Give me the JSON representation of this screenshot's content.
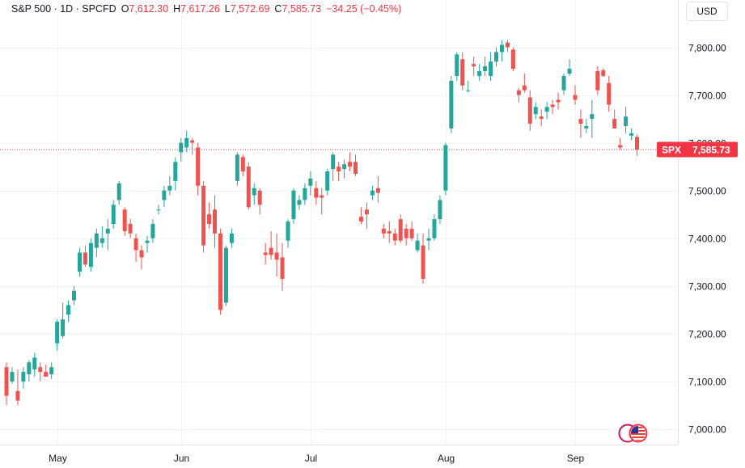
{
  "legend": {
    "symbol": "S&P 500 · 1D · SPCFD",
    "open_label": "O",
    "open": "7,612.30",
    "high_label": "H",
    "high": "7,617.26",
    "low_label": "L",
    "low": "7,572.69",
    "close_label": "C",
    "close": "7,585.73",
    "change": "−34.25 (−0.45%)"
  },
  "currency": "USD",
  "price_tag": {
    "ticker": "SPX",
    "price": "7,585.73"
  },
  "colors": {
    "up": "#26a69a",
    "down": "#ef5350",
    "grid": "#f0f3fa",
    "axis_text": "#131722",
    "price_tag": "#f23645"
  },
  "chart_data": {
    "type": "candlestick",
    "ylim": [
      6960,
      7880
    ],
    "y_ticks": [
      7000,
      7100,
      7200,
      7300,
      7400,
      7500,
      7600,
      7700,
      7800
    ],
    "y_tick_labels": [
      "7,000.00",
      "7,100.00",
      "7,200.00",
      "7,300.00",
      "7,400.00",
      "7,500.00",
      "7,600.00",
      "7,700.00",
      "7,800.00"
    ],
    "x_labels": [
      {
        "label": "May",
        "index": 9
      },
      {
        "label": "Jun",
        "index": 31
      },
      {
        "label": "Jul",
        "index": 54
      },
      {
        "label": "Aug",
        "index": 78
      },
      {
        "label": "Sep",
        "index": 101
      }
    ],
    "last_price": 7585.73,
    "candles": [
      [
        7130,
        7140,
        7050,
        7070
      ],
      [
        7100,
        7130,
        7095,
        7120
      ],
      [
        7080,
        7125,
        7050,
        7060
      ],
      [
        7100,
        7130,
        7085,
        7120
      ],
      [
        7115,
        7145,
        7100,
        7140
      ],
      [
        7125,
        7160,
        7110,
        7150
      ],
      [
        7130,
        7140,
        7100,
        7120
      ],
      [
        7120,
        7135,
        7110,
        7110
      ],
      [
        7115,
        7140,
        7105,
        7130
      ],
      [
        7180,
        7230,
        7165,
        7225
      ],
      [
        7195,
        7265,
        7190,
        7230
      ],
      [
        7240,
        7270,
        7225,
        7260
      ],
      [
        7270,
        7300,
        7260,
        7290
      ],
      [
        7330,
        7380,
        7320,
        7370
      ],
      [
        7370,
        7385,
        7340,
        7345
      ],
      [
        7340,
        7400,
        7330,
        7390
      ],
      [
        7380,
        7420,
        7360,
        7410
      ],
      [
        7390,
        7425,
        7380,
        7400
      ],
      [
        7410,
        7440,
        7375,
        7420
      ],
      [
        7430,
        7480,
        7420,
        7470
      ],
      [
        7480,
        7520,
        7470,
        7515
      ],
      [
        7460,
        7465,
        7405,
        7415
      ],
      [
        7430,
        7440,
        7400,
        7410
      ],
      [
        7400,
        7410,
        7350,
        7375
      ],
      [
        7375,
        7385,
        7335,
        7360
      ],
      [
        7390,
        7405,
        7370,
        7395
      ],
      [
        7400,
        7440,
        7390,
        7430
      ],
      [
        7460,
        7470,
        7450,
        7460
      ],
      [
        7480,
        7510,
        7465,
        7500
      ],
      [
        7500,
        7530,
        7490,
        7510
      ],
      [
        7520,
        7570,
        7500,
        7560
      ],
      [
        7580,
        7610,
        7560,
        7600
      ],
      [
        7590,
        7625,
        7580,
        7610
      ],
      [
        7605,
        7610,
        7575,
        7600
      ],
      [
        7590,
        7600,
        7490,
        7510
      ],
      [
        7510,
        7520,
        7370,
        7385
      ],
      [
        7450,
        7475,
        7420,
        7430
      ],
      [
        7460,
        7490,
        7380,
        7410
      ],
      [
        7410,
        7420,
        7240,
        7250
      ],
      [
        7265,
        7385,
        7258,
        7380
      ],
      [
        7390,
        7420,
        7380,
        7410
      ],
      [
        7520,
        7580,
        7510,
        7575
      ],
      [
        7570,
        7575,
        7530,
        7540
      ],
      [
        7550,
        7560,
        7460,
        7465
      ],
      [
        7490,
        7515,
        7470,
        7505
      ],
      [
        7500,
        7505,
        7450,
        7470
      ],
      [
        7370,
        7390,
        7345,
        7365
      ],
      [
        7380,
        7415,
        7355,
        7365
      ],
      [
        7370,
        7410,
        7320,
        7355
      ],
      [
        7360,
        7390,
        7290,
        7315
      ],
      [
        7395,
        7440,
        7380,
        7435
      ],
      [
        7440,
        7505,
        7430,
        7500
      ],
      [
        7470,
        7490,
        7460,
        7480
      ],
      [
        7480,
        7515,
        7470,
        7505
      ],
      [
        7510,
        7540,
        7490,
        7525
      ],
      [
        7505,
        7520,
        7470,
        7485
      ],
      [
        7490,
        7505,
        7450,
        7485
      ],
      [
        7500,
        7545,
        7490,
        7540
      ],
      [
        7545,
        7580,
        7520,
        7575
      ],
      [
        7550,
        7560,
        7520,
        7540
      ],
      [
        7545,
        7565,
        7525,
        7555
      ],
      [
        7560,
        7580,
        7540,
        7550
      ],
      [
        7560,
        7575,
        7530,
        7535
      ],
      [
        7445,
        7465,
        7430,
        7435
      ],
      [
        7460,
        7475,
        7420,
        7450
      ],
      [
        7490,
        7510,
        7480,
        7500
      ],
      [
        7505,
        7530,
        7475,
        7495
      ],
      [
        7420,
        7430,
        7400,
        7410
      ],
      [
        7415,
        7435,
        7390,
        7410
      ],
      [
        7410,
        7420,
        7385,
        7395
      ],
      [
        7440,
        7450,
        7390,
        7395
      ],
      [
        7420,
        7430,
        7385,
        7400
      ],
      [
        7420,
        7435,
        7395,
        7400
      ],
      [
        7375,
        7410,
        7370,
        7395
      ],
      [
        7385,
        7410,
        7305,
        7315
      ],
      [
        7395,
        7420,
        7375,
        7400
      ],
      [
        7400,
        7450,
        7395,
        7440
      ],
      [
        7440,
        7490,
        7430,
        7480
      ],
      [
        7500,
        7600,
        7490,
        7595
      ],
      [
        7630,
        7740,
        7620,
        7730
      ],
      [
        7740,
        7790,
        7730,
        7785
      ],
      [
        7775,
        7790,
        7710,
        7720
      ],
      [
        7710,
        7730,
        7705,
        7710
      ],
      [
        7765,
        7780,
        7740,
        7760
      ],
      [
        7740,
        7765,
        7730,
        7750
      ],
      [
        7750,
        7780,
        7740,
        7760
      ],
      [
        7740,
        7790,
        7730,
        7770
      ],
      [
        7770,
        7800,
        7760,
        7790
      ],
      [
        7790,
        7815,
        7770,
        7805
      ],
      [
        7810,
        7815,
        7790,
        7800
      ],
      [
        7795,
        7800,
        7750,
        7755
      ],
      [
        7710,
        7715,
        7685,
        7700
      ],
      [
        7720,
        7745,
        7705,
        7710
      ],
      [
        7695,
        7710,
        7625,
        7640
      ],
      [
        7660,
        7685,
        7650,
        7675
      ],
      [
        7655,
        7670,
        7635,
        7650
      ],
      [
        7665,
        7685,
        7650,
        7675
      ],
      [
        7680,
        7690,
        7660,
        7675
      ],
      [
        7690,
        7705,
        7670,
        7685
      ],
      [
        7710,
        7745,
        7700,
        7740
      ],
      [
        7745,
        7775,
        7740,
        7755
      ],
      [
        7700,
        7720,
        7680,
        7690
      ],
      [
        7650,
        7670,
        7610,
        7640
      ],
      [
        7630,
        7650,
        7620,
        7635
      ],
      [
        7650,
        7690,
        7610,
        7660
      ],
      [
        7750,
        7760,
        7700,
        7710
      ],
      [
        7752,
        7756,
        7738,
        7740
      ],
      [
        7725,
        7740,
        7665,
        7680
      ],
      [
        7650,
        7670,
        7630,
        7630
      ],
      [
        7595,
        7610,
        7585,
        7590
      ],
      [
        7635,
        7675,
        7620,
        7655
      ],
      [
        7615,
        7630,
        7605,
        7620
      ],
      [
        7612.3,
        7617.26,
        7572.69,
        7585.73
      ]
    ]
  }
}
